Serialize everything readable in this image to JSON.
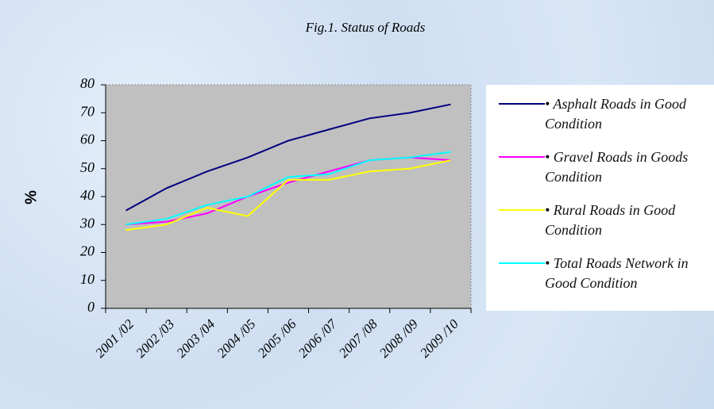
{
  "chart_data": {
    "type": "line",
    "title": "Fig.1. Status of Roads",
    "y_label": "%",
    "categories": [
      "2001 /02",
      "2002 /03",
      "2003 /04",
      "2004 /05",
      "2005 /06",
      "2006 /07",
      "2007 /08",
      "2008 /09",
      "2009 /10"
    ],
    "series": [
      {
        "name": "• Asphalt Roads in Good Condition",
        "color": "#000080",
        "values": [
          35,
          43,
          49,
          54,
          60,
          64,
          68,
          70,
          73
        ]
      },
      {
        "name": "• Gravel Roads in Goods Condition",
        "color": "#ff00ff",
        "values": [
          30,
          31,
          34,
          40,
          45,
          49,
          53,
          54,
          53
        ]
      },
      {
        "name": "• Rural Roads in Good Condition",
        "color": "#ffff00",
        "values": [
          28,
          30,
          36,
          33,
          46,
          46,
          49,
          50,
          53
        ]
      },
      {
        "name": "• Total Roads Network in Good Condition",
        "color": "#00ffff",
        "values": [
          30,
          32,
          37,
          40,
          47,
          48,
          53,
          54,
          56
        ]
      }
    ],
    "ylim": [
      0,
      80
    ],
    "yticks": [
      0,
      10,
      20,
      30,
      40,
      50,
      60,
      70,
      80
    ],
    "grid": false,
    "legend": "right"
  }
}
